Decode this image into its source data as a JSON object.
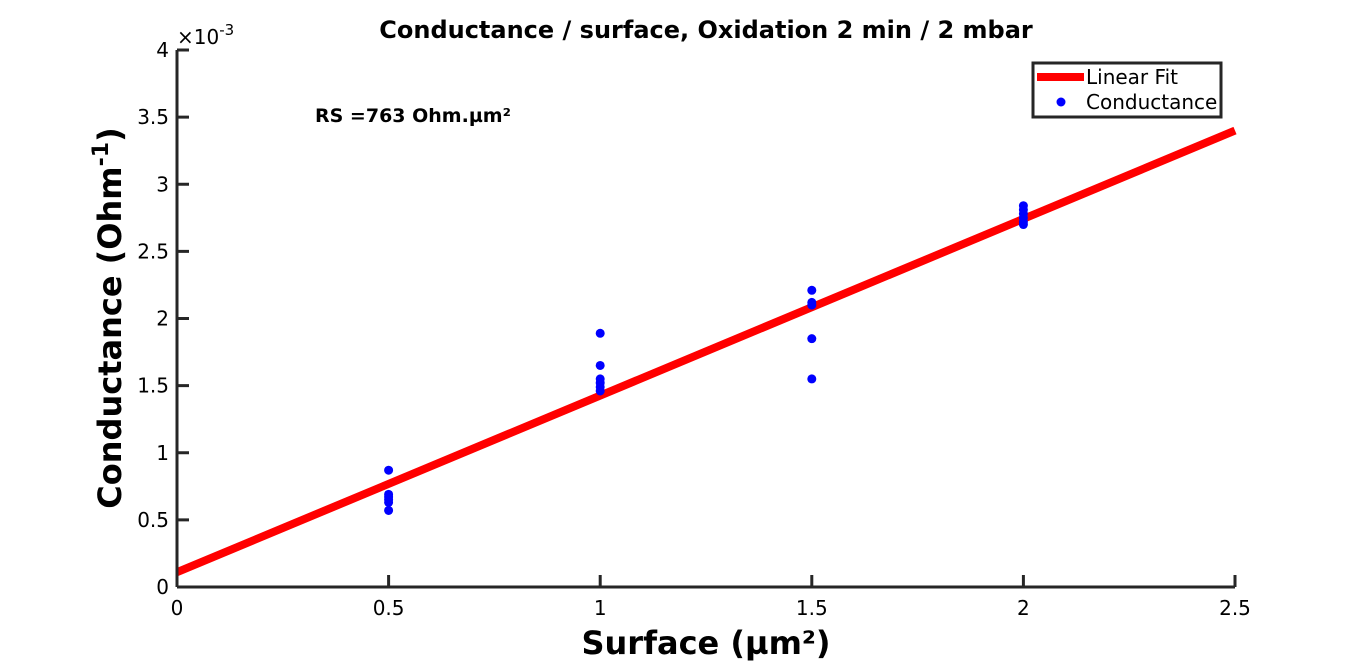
{
  "chart_data": {
    "type": "scatter",
    "title": "Conductance / surface, Oxidation 2 min / 2 mbar",
    "xlabel": "Surface (µm²)",
    "ylabel": {
      "prefix": "Conductance (Ohm",
      "superscript": "-1",
      "suffix": ")"
    },
    "y_exponent": {
      "multiplier": "×10",
      "power": "-3"
    },
    "annotation": "RS =763 Ohm.µm²",
    "xlim": [
      0,
      2.5
    ],
    "ylim": [
      0,
      4
    ],
    "x_ticks": [
      {
        "value": 0,
        "label": "0"
      },
      {
        "value": 0.5,
        "label": "0.5"
      },
      {
        "value": 1,
        "label": "1"
      },
      {
        "value": 1.5,
        "label": "1.5"
      },
      {
        "value": 2,
        "label": "2"
      },
      {
        "value": 2.5,
        "label": "2.5"
      }
    ],
    "y_ticks": [
      {
        "value": 0,
        "label": "0"
      },
      {
        "value": 0.5,
        "label": "0.5"
      },
      {
        "value": 1,
        "label": "1"
      },
      {
        "value": 1.5,
        "label": "1.5"
      },
      {
        "value": 2,
        "label": "2"
      },
      {
        "value": 2.5,
        "label": "2.5"
      },
      {
        "value": 3,
        "label": "3"
      },
      {
        "value": 3.5,
        "label": "3.5"
      },
      {
        "value": 4,
        "label": "4"
      }
    ],
    "grid": false,
    "legend_position": "top-right",
    "series": [
      {
        "name": "Linear Fit",
        "kind": "line",
        "color": "#ff0000",
        "x": [
          0,
          2.5
        ],
        "y": [
          0.11,
          3.4
        ]
      },
      {
        "name": "Conductance",
        "kind": "scatter",
        "color": "#0000ff",
        "x": [
          0.5,
          0.5,
          0.5,
          0.5,
          0.5,
          0.5,
          1,
          1,
          1,
          1,
          1,
          1,
          1.5,
          1.5,
          1.5,
          1.5,
          1.5,
          2,
          2,
          2,
          2,
          2,
          2
        ],
        "y": [
          0.87,
          0.69,
          0.67,
          0.65,
          0.63,
          0.57,
          1.89,
          1.65,
          1.55,
          1.52,
          1.49,
          1.46,
          2.21,
          2.12,
          2.1,
          1.85,
          1.55,
          2.84,
          2.81,
          2.78,
          2.75,
          2.72,
          2.7
        ]
      }
    ]
  }
}
